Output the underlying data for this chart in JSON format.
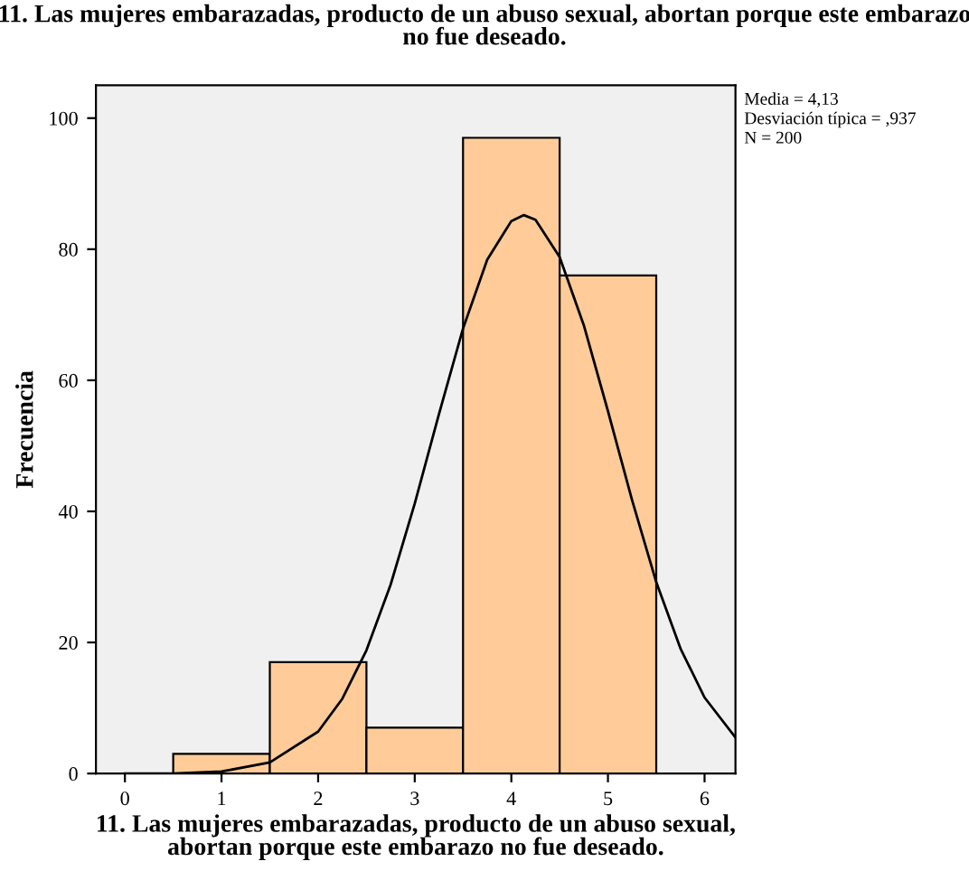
{
  "chart_data": {
    "type": "histogram",
    "title": "11. Las mujeres embarazadas, producto de un abuso sexual, abortan porque este embarazo\nno fue deseado.",
    "xlabel": "11. Las mujeres embarazadas, producto de un abuso sexual,\nabortan porque este embarazo no fue deseado.",
    "ylabel": "Frecuencia",
    "bins": [
      0.5,
      1.5,
      2.5,
      3.5,
      4.5,
      5.5
    ],
    "values": [
      3,
      17,
      7,
      97,
      76
    ],
    "color": "#ffcc99",
    "series": [
      {
        "type": "line",
        "color": "#000000",
        "x": [
          0.0,
          0.5,
          1.0,
          1.5,
          2.0,
          2.25,
          2.5,
          2.75,
          3.0,
          3.25,
          3.5,
          3.75,
          4.0,
          4.13,
          4.25,
          4.5,
          4.75,
          5.0,
          5.25,
          5.5,
          5.75,
          6.0,
          6.32
        ],
        "values": [
          0,
          0,
          0.3,
          1.7,
          6.4,
          11.4,
          18.8,
          28.8,
          41.2,
          54.8,
          67.9,
          78.4,
          84.3,
          85.2,
          84.5,
          78.8,
          68.4,
          55.3,
          41.7,
          29.2,
          19.1,
          11.6,
          5.5
        ]
      }
    ],
    "xlim": [
      -0.3,
      6.32
    ],
    "ylim": [
      0,
      105
    ],
    "xticks": [
      0,
      1,
      2,
      3,
      4,
      5,
      6
    ],
    "yticks": [
      0,
      20,
      40,
      60,
      80,
      100
    ],
    "grid": false,
    "legend": false,
    "annotations": [
      "Media = 4,13",
      "Desviación típica = ,937",
      "N = 200"
    ]
  }
}
